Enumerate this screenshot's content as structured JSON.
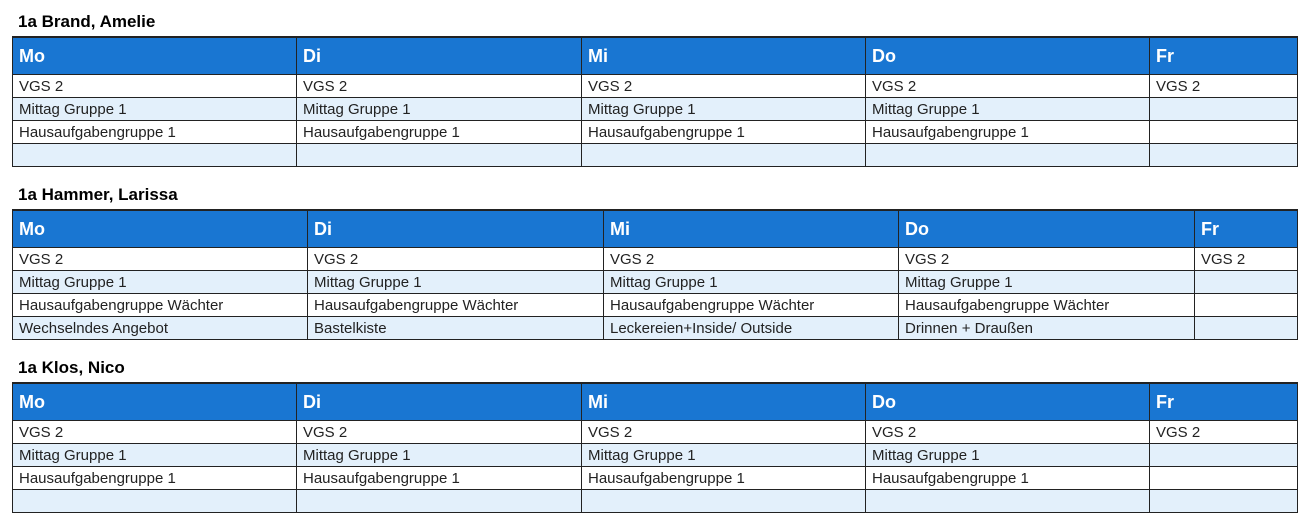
{
  "days": [
    "Mo",
    "Di",
    "Mi",
    "Do",
    "Fr"
  ],
  "colors": {
    "header": "#1976d2",
    "alt_row": "#e3f0fb"
  },
  "schedules": [
    {
      "title": "1a Brand, Amelie",
      "rows": [
        [
          "VGS 2",
          "VGS 2",
          "VGS 2",
          "VGS 2",
          "VGS 2"
        ],
        [
          "Mittag Gruppe 1",
          "Mittag Gruppe 1",
          "Mittag Gruppe 1",
          "Mittag Gruppe 1",
          ""
        ],
        [
          "Hausaufgabengruppe 1",
          "Hausaufgabengruppe 1",
          "Hausaufgabengruppe 1",
          "Hausaufgabengruppe 1",
          ""
        ],
        [
          "",
          "",
          "",
          "",
          ""
        ]
      ]
    },
    {
      "title": "1a Hammer, Larissa",
      "rows": [
        [
          "VGS 2",
          "VGS 2",
          "VGS 2",
          "VGS 2",
          "VGS 2"
        ],
        [
          "Mittag Gruppe 1",
          "Mittag Gruppe 1",
          "Mittag Gruppe 1",
          "Mittag Gruppe 1",
          ""
        ],
        [
          "Hausaufgabengruppe Wächter",
          "Hausaufgabengruppe Wächter",
          "Hausaufgabengruppe Wächter",
          "Hausaufgabengruppe Wächter",
          ""
        ],
        [
          "Wechselndes Angebot",
          "Bastelkiste",
          "Leckereien+Inside/ Outside",
          "Drinnen + Draußen",
          ""
        ]
      ]
    },
    {
      "title": "1a Klos, Nico",
      "rows": [
        [
          "VGS 2",
          "VGS 2",
          "VGS 2",
          "VGS 2",
          "VGS 2"
        ],
        [
          "Mittag Gruppe 1",
          "Mittag Gruppe 1",
          "Mittag Gruppe 1",
          "Mittag Gruppe 1",
          ""
        ],
        [
          "Hausaufgabengruppe 1",
          "Hausaufgabengruppe 1",
          "Hausaufgabengruppe 1",
          "Hausaufgabengruppe 1",
          ""
        ],
        [
          "",
          "",
          "",
          "",
          ""
        ]
      ]
    }
  ]
}
